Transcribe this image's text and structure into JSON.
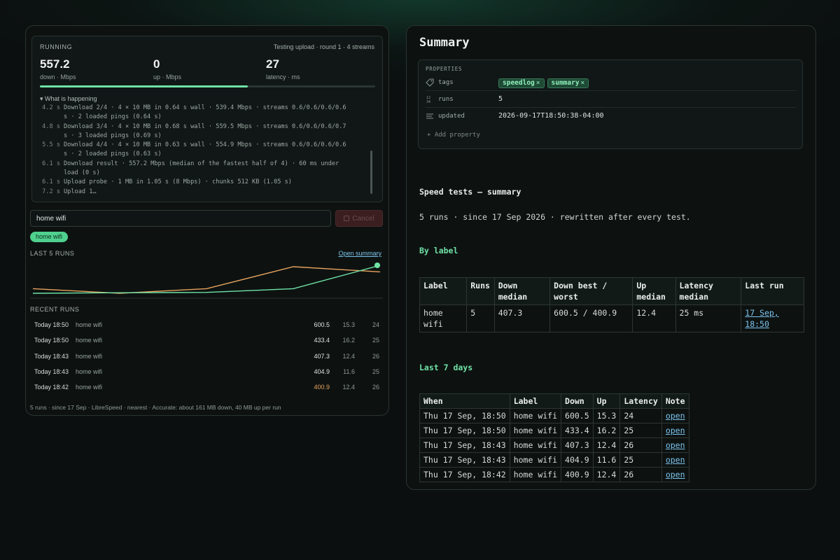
{
  "left": {
    "running": {
      "label": "RUNNING",
      "status": "Testing upload · round 1 · 4 streams",
      "metrics": [
        {
          "value": "557.2",
          "unit": "down · Mbps"
        },
        {
          "value": "0",
          "unit": "up · Mbps"
        },
        {
          "value": "27",
          "unit": "latency · ms"
        }
      ],
      "progress": 0.62,
      "happening_label": "▾ What is happening",
      "log": [
        {
          "t": "4.2 s",
          "text": "Download 2/4 · 4 × 10 MB in 0.64 s wall · 539.4 Mbps · streams 0.6/0.6/0.6/0.6"
        },
        {
          "t": "",
          "text": "s · 2 loaded pings (0.64 s)"
        },
        {
          "t": "4.8 s",
          "text": "Download 3/4 · 4 × 10 MB in 0.68 s wall · 559.5 Mbps · streams 0.6/0.6/0.6/0.7"
        },
        {
          "t": "",
          "text": "s · 3 loaded pings (0.69 s)"
        },
        {
          "t": "5.5 s",
          "text": "Download 4/4 · 4 × 10 MB in 0.63 s wall · 554.9 Mbps · streams 0.6/0.6/0.6/0.6"
        },
        {
          "t": "",
          "text": "s · 2 loaded pings (0.63 s)"
        },
        {
          "t": "6.1 s",
          "text": "Download result · 557.2 Mbps (median of the fastest half of 4) · 60 ms under"
        },
        {
          "t": "",
          "text": "load (0 s)"
        },
        {
          "t": "6.1 s",
          "text": "Upload probe · 1 MB in 1.05 s (8 Mbps) · chunks 512 KB (1.05 s)"
        },
        {
          "t": "7.2 s",
          "text": "Upload 1…"
        }
      ]
    },
    "label_input_value": "home wifi",
    "cancel_label": "Cancel",
    "chip_label": "home wifi",
    "last_runs_label": "LAST 5 RUNS",
    "open_summary_label": "Open summary",
    "spark": {
      "down": [
        600.5,
        433.4,
        407.3,
        404.9,
        400.9
      ],
      "up": [
        15.3,
        16.2,
        12.4,
        11.6,
        12.4
      ],
      "down_color": "#6fe3a6",
      "up_color": "#e8a25d"
    },
    "recent_label": "RECENT RUNS",
    "recent_runs": [
      {
        "when": "Today 18:50",
        "label": "home wifi",
        "down": "600.5",
        "up": "15.3",
        "latency": "24",
        "worst": false
      },
      {
        "when": "Today 18:50",
        "label": "home wifi",
        "down": "433.4",
        "up": "16.2",
        "latency": "25",
        "worst": false
      },
      {
        "when": "Today 18:43",
        "label": "home wifi",
        "down": "407.3",
        "up": "12.4",
        "latency": "26",
        "worst": false
      },
      {
        "when": "Today 18:43",
        "label": "home wifi",
        "down": "404.9",
        "up": "11.6",
        "latency": "25",
        "worst": false
      },
      {
        "when": "Today 18:42",
        "label": "home wifi",
        "down": "400.9",
        "up": "12.4",
        "latency": "26",
        "worst": true
      }
    ],
    "footer": "5 runs · since 17 Sep · LibreSpeed · nearest · Accurate: about 161 MB down, 40 MB up per run"
  },
  "right": {
    "title": "Summary",
    "properties": {
      "header": "PROPERTIES",
      "tags_key": "tags",
      "tags": [
        "speedlog",
        "summary"
      ],
      "runs_key": "runs",
      "runs_value": "5",
      "updated_key": "updated",
      "updated_value": "2026-09-17T18:50:38-04:00",
      "add_label": "Add property"
    },
    "heading": "Speed tests — summary",
    "intro": "5 runs · since 17 Sep 2026 · rewritten after every test.",
    "by_label_heading": "By label",
    "by_label_headers": [
      "Label",
      "Runs",
      "Down median",
      "Down best / worst",
      "Up median",
      "Latency median",
      "Last run"
    ],
    "by_label_rows": [
      {
        "label": "home wifi",
        "runs": "5",
        "down_median": "407.3",
        "best_worst": "600.5 / 400.9",
        "up_median": "12.4",
        "latency_median": "25 ms",
        "last_run": "17 Sep, 18:50"
      }
    ],
    "last7_heading": "Last 7 days",
    "last7_headers": [
      "When",
      "Label",
      "Down",
      "Up",
      "Latency",
      "Note"
    ],
    "last7_rows": [
      {
        "when": "Thu 17 Sep, 18:50",
        "label": "home wifi",
        "down": "600.5",
        "up": "15.3",
        "latency": "24",
        "note": "open"
      },
      {
        "when": "Thu 17 Sep, 18:50",
        "label": "home wifi",
        "down": "433.4",
        "up": "16.2",
        "latency": "25",
        "note": "open"
      },
      {
        "when": "Thu 17 Sep, 18:43",
        "label": "home wifi",
        "down": "407.3",
        "up": "12.4",
        "latency": "26",
        "note": "open"
      },
      {
        "when": "Thu 17 Sep, 18:43",
        "label": "home wifi",
        "down": "404.9",
        "up": "11.6",
        "latency": "25",
        "note": "open"
      },
      {
        "when": "Thu 17 Sep, 18:42",
        "label": "home wifi",
        "down": "400.9",
        "up": "12.4",
        "latency": "26",
        "note": "open"
      }
    ]
  }
}
